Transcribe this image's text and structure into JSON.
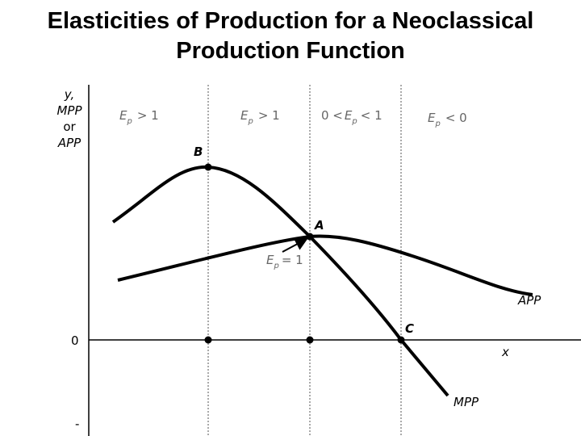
{
  "title": "Elasticities of Production for a Neoclassical Production Function",
  "y_axis_label": [
    "y,",
    "MPP",
    "or",
    "APP"
  ],
  "x_axis_label": "x",
  "origin_label": "0",
  "negative_label": "-",
  "regions": [
    [
      "E",
      "p",
      "> 1"
    ],
    [
      "E",
      "p",
      "> 1"
    ],
    [
      "0 <",
      "E",
      "p",
      "< 1"
    ],
    [
      "E",
      "p",
      "< 0"
    ]
  ],
  "points": [
    "B",
    "A",
    "C"
  ],
  "annotation": [
    "E",
    "p",
    "= 1"
  ],
  "curves": [
    "APP",
    "MPP"
  ]
}
